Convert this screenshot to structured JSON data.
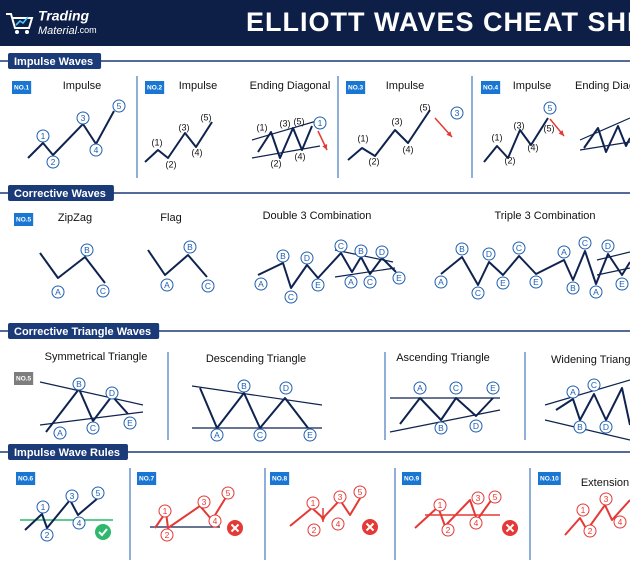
{
  "header": {
    "brand": "Trading",
    "brand_sub": "Material",
    "brand_domain": ".com",
    "title": "ELLIOTT WAVES CHEAT SHEET"
  },
  "sections": [
    {
      "title": "Impulse Waves",
      "panels": [
        {
          "tag": "NO.1",
          "title": "Impulse",
          "labels": [
            "1",
            "2",
            "3",
            "4",
            "5"
          ]
        },
        {
          "tag": "NO.2",
          "title": "Impulse",
          "labels": [
            "(1)",
            "(2)",
            "(3)",
            "(4)",
            "(5)"
          ]
        },
        {
          "title": "Ending Diagonal",
          "labels": [
            "(1)",
            "(2)",
            "(3)",
            "(4)",
            "(5)",
            "1"
          ]
        },
        {
          "tag": "NO.3",
          "title": "Impulse",
          "labels": [
            "(1)",
            "(2)",
            "(3)",
            "(4)",
            "(5)",
            "3"
          ]
        },
        {
          "tag": "NO.4",
          "title": "Impulse",
          "labels": [
            "(1)",
            "(2)",
            "(3)",
            "(4)",
            "(5)",
            "5"
          ]
        },
        {
          "title": "Ending Diagonal",
          "labels": []
        }
      ]
    },
    {
      "title": "Corrective Waves",
      "panels": [
        {
          "tag": "NO.5",
          "title": "ZipZag",
          "labels": [
            "A",
            "B",
            "C"
          ]
        },
        {
          "title": "Flag",
          "labels": [
            "A",
            "B",
            "C"
          ]
        },
        {
          "title": "Double 3 Combination",
          "labels": [
            "A",
            "B",
            "C",
            "D",
            "E",
            "C",
            "B",
            "D",
            "A",
            "C",
            "E"
          ]
        },
        {
          "title": "Triple 3 Combination",
          "labels": [
            "A",
            "B",
            "C",
            "D",
            "E",
            "C",
            "E",
            "A",
            "B",
            "C",
            "A",
            "D",
            "E"
          ]
        }
      ]
    },
    {
      "title": "Corrective Triangle Waves",
      "panels": [
        {
          "tag": "NO.5",
          "title": "Symmetrical Triangle",
          "labels": [
            "A",
            "B",
            "C",
            "D",
            "E"
          ]
        },
        {
          "title": "Descending Triangle",
          "labels": [
            "B",
            "D",
            "A",
            "C",
            "E"
          ]
        },
        {
          "title": "Ascending Triangle",
          "labels": [
            "A",
            "C",
            "E",
            "B",
            "D"
          ]
        },
        {
          "title": "Widening Triangle",
          "labels": [
            "A",
            "C",
            "B",
            "D"
          ]
        }
      ]
    },
    {
      "title": "Impulse Wave Rules",
      "panels": [
        {
          "tag": "NO.6",
          "labels": [
            "1",
            "2",
            "3",
            "4",
            "5"
          ]
        },
        {
          "tag": "NO.7",
          "labels": [
            "1",
            "2",
            "3",
            "4",
            "5"
          ]
        },
        {
          "tag": "NO.8",
          "labels": [
            "1",
            "2",
            "3",
            "4",
            "5"
          ]
        },
        {
          "tag": "NO.9",
          "labels": [
            "1",
            "2",
            "3",
            "4",
            "5"
          ]
        },
        {
          "tag": "NO.10",
          "title": "Extension",
          "labels": [
            "1",
            "2",
            "3",
            "4"
          ]
        }
      ]
    }
  ]
}
